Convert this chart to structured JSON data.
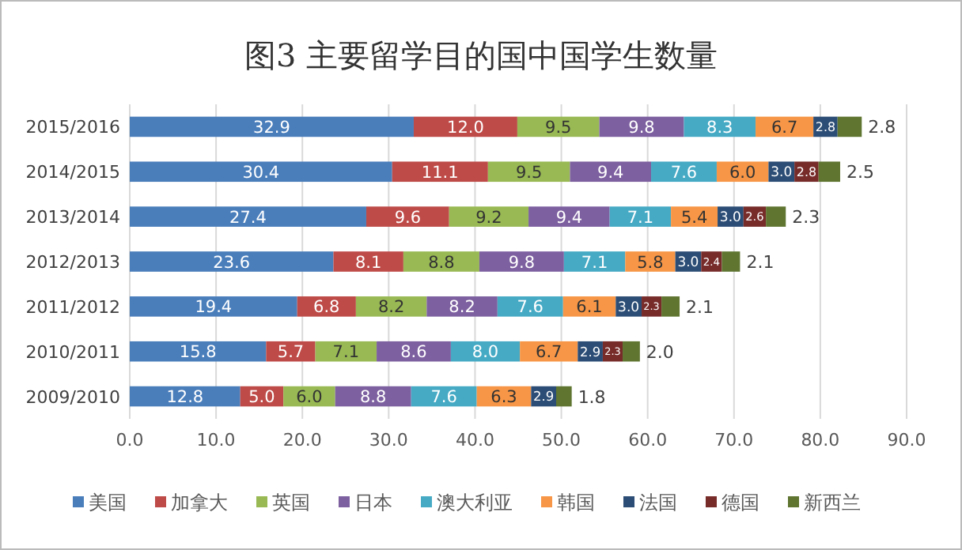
{
  "chart_data": {
    "type": "bar",
    "orientation": "horizontal",
    "stacked": true,
    "title": "图3 主要留学目的国中国学生数量",
    "categories": [
      "2015/2016",
      "2014/2015",
      "2013/2014",
      "2012/2013",
      "2011/2012",
      "2010/2011",
      "2009/2010"
    ],
    "xlim": [
      0,
      90
    ],
    "xticks": [
      {
        "value": 0,
        "label": "0.0"
      },
      {
        "value": 10,
        "label": "10.0"
      },
      {
        "value": 20,
        "label": "20.0"
      },
      {
        "value": 30,
        "label": "30.0"
      },
      {
        "value": 40,
        "label": "40.0"
      },
      {
        "value": 50,
        "label": "50.0"
      },
      {
        "value": 60,
        "label": "60.0"
      },
      {
        "value": 70,
        "label": "70.0"
      },
      {
        "value": 80,
        "label": "80.0"
      },
      {
        "value": 90,
        "label": "90.0"
      }
    ],
    "grid": "x",
    "legend": "bottom",
    "series": [
      {
        "name": "美国",
        "color": "#4a7ebb",
        "values": [
          32.9,
          30.4,
          27.4,
          23.6,
          19.4,
          15.8,
          12.8
        ],
        "value_labels": [
          "32.9",
          "30.4",
          "27.4",
          "23.6",
          "19.4",
          "15.8",
          "12.8"
        ]
      },
      {
        "name": "加拿大",
        "color": "#be4b48",
        "values": [
          12.0,
          11.1,
          9.6,
          8.1,
          6.8,
          5.7,
          5.0
        ],
        "value_labels": [
          "12.0",
          "11.1",
          "9.6",
          "8.1",
          "6.8",
          "5.7",
          "5.0"
        ]
      },
      {
        "name": "英国",
        "color": "#98b954",
        "values": [
          9.5,
          9.5,
          9.2,
          8.8,
          8.2,
          7.1,
          6.0
        ],
        "value_labels": [
          "9.5",
          "9.5",
          "9.2",
          "8.8",
          "8.2",
          "7.1",
          "6.0"
        ]
      },
      {
        "name": "日本",
        "color": "#7d60a0",
        "values": [
          9.8,
          9.4,
          9.4,
          9.8,
          8.2,
          8.6,
          8.8
        ],
        "value_labels": [
          "9.8",
          "9.4",
          "9.4",
          "9.8",
          "8.2",
          "8.6",
          "8.8"
        ]
      },
      {
        "name": "澳大利亚",
        "color": "#46aac5",
        "values": [
          8.3,
          7.6,
          7.1,
          7.1,
          7.6,
          8.0,
          7.6
        ],
        "value_labels": [
          "8.3",
          "7.6",
          "7.1",
          "7.1",
          "7.6",
          "8.0",
          "7.6"
        ]
      },
      {
        "name": "韩国",
        "color": "#f79646",
        "values": [
          6.7,
          6.0,
          5.4,
          5.8,
          6.1,
          6.7,
          6.3
        ],
        "value_labels": [
          "6.7",
          "6.0",
          "5.4",
          "5.8",
          "6.1",
          "6.7",
          "6.3"
        ]
      },
      {
        "name": "法国",
        "color": "#2c4d75",
        "values": [
          2.8,
          3.0,
          3.0,
          3.0,
          3.0,
          2.9,
          2.9
        ],
        "value_labels": [
          "2.8",
          "3.0",
          "3.0",
          "3.0",
          "3.0",
          "2.9",
          "2.9"
        ]
      },
      {
        "name": "德国",
        "color": "#772c2a",
        "values": [
          null,
          2.8,
          2.6,
          2.4,
          2.3,
          2.3,
          null
        ],
        "value_labels": [
          null,
          "2.8",
          "2.6",
          "2.4",
          "2.3",
          "2.3",
          null
        ]
      },
      {
        "name": "新西兰",
        "color": "#5f7530",
        "values": [
          2.8,
          2.5,
          2.3,
          2.1,
          2.1,
          2.0,
          1.8
        ],
        "value_labels": [
          "2.8",
          "2.5",
          "2.3",
          "2.1",
          "2.1",
          "2.0",
          "1.8"
        ]
      }
    ]
  }
}
